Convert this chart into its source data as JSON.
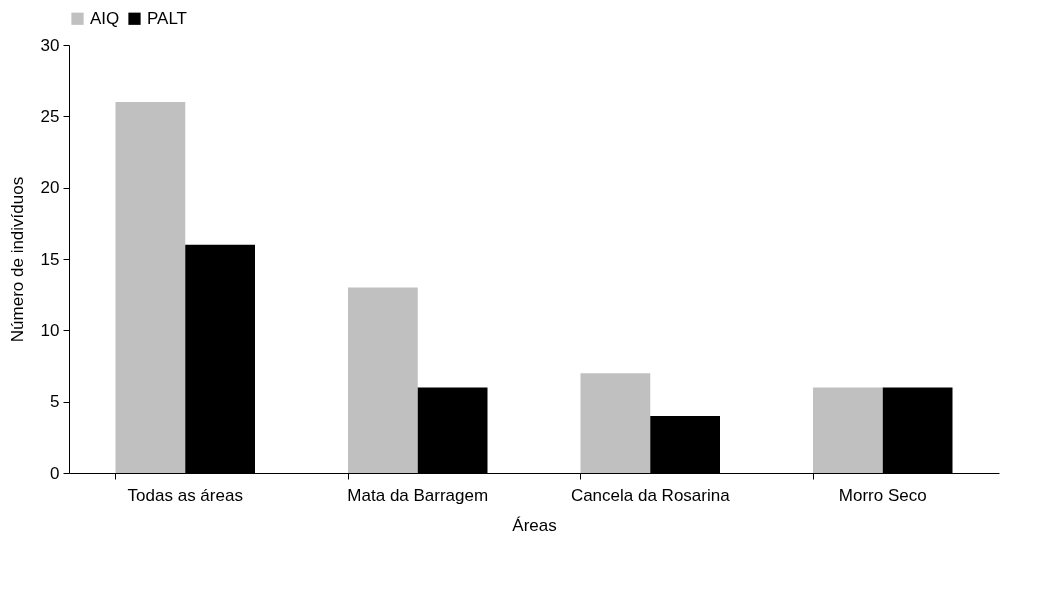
{
  "chart_data": {
    "type": "bar",
    "xlabel": "Áreas",
    "ylabel": "Número de indivíduos",
    "categories": [
      "Todas as áreas",
      "Mata da Barragem",
      "Cancela da Rosarina",
      "Morro Seco"
    ],
    "series": [
      {
        "name": "AIQ",
        "color": "#c0c0c0",
        "values": [
          26,
          13,
          7,
          6
        ]
      },
      {
        "name": "PALT",
        "color": "#000000",
        "values": [
          16,
          6,
          4,
          6
        ]
      }
    ],
    "ylim": [
      0,
      30
    ],
    "yticks": [
      0,
      5,
      10,
      15,
      20,
      25,
      30
    ],
    "grid": false,
    "legend": "top"
  }
}
